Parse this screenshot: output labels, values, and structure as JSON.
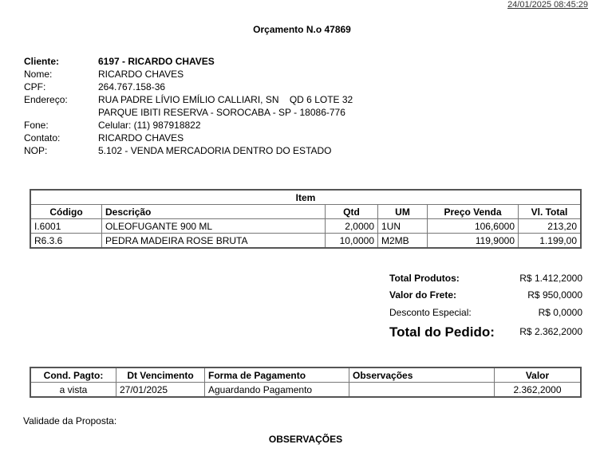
{
  "timestamp": "24/01/2025 08:45:29",
  "title": "Orçamento N.o 47869",
  "client": {
    "cliente_label": "Cliente:",
    "cliente": "6197 - RICARDO CHAVES",
    "nome_label": "Nome:",
    "nome": "RICARDO CHAVES",
    "cpf_label": "CPF:",
    "cpf": "264.767.158-36",
    "endereco_label": "Endereço:",
    "endereco1": "RUA PADRE LÍVIO EMÍLIO CALLIARI, SN    QD 6 LOTE 32",
    "endereco2": "PARQUE IBITI RESERVA - SOROCABA - SP - 18086-776",
    "fone_label": "Fone:",
    "fone": "Celular: (11) 987918822",
    "contato_label": "Contato:",
    "contato": "RICARDO CHAVES",
    "nop_label": "NOP:",
    "nop": "5.102 - VENDA MERCADORIA DENTRO DO ESTADO"
  },
  "items": {
    "title": "Item",
    "headers": [
      "Código",
      "Descrição",
      "Qtd",
      "UM",
      "Preço Venda",
      "Vl. Total"
    ],
    "rows": [
      [
        "I.6001",
        "OLEOFUGANTE 900 ML",
        "2,0000",
        "1UN",
        "106,6000",
        "213,20"
      ],
      [
        "R6.3.6",
        "PEDRA MADEIRA ROSE BRUTA",
        "10,0000",
        "M2MB",
        "119,9000",
        "1.199,00"
      ]
    ]
  },
  "totals": {
    "produtos_label": "Total Produtos:",
    "produtos": "R$ 1.412,2000",
    "frete_label": "Valor do Frete:",
    "frete": "R$ 950,0000",
    "desconto_label": "Desconto Especial:",
    "desconto": "R$ 0,0000",
    "pedido_label": "Total do Pedido:",
    "pedido": "R$ 2.362,2000"
  },
  "payment": {
    "headers": [
      "Cond. Pagto:",
      "Dt Vencimento",
      "Forma de Pagamento",
      "Observações",
      "Valor"
    ],
    "row": [
      "a vista",
      "27/01/2025",
      "Aguardando Pagamento",
      "",
      "2.362,2000"
    ]
  },
  "validade_label": "Validade da Proposta:",
  "observacoes_title": "OBSERVAÇÕES"
}
